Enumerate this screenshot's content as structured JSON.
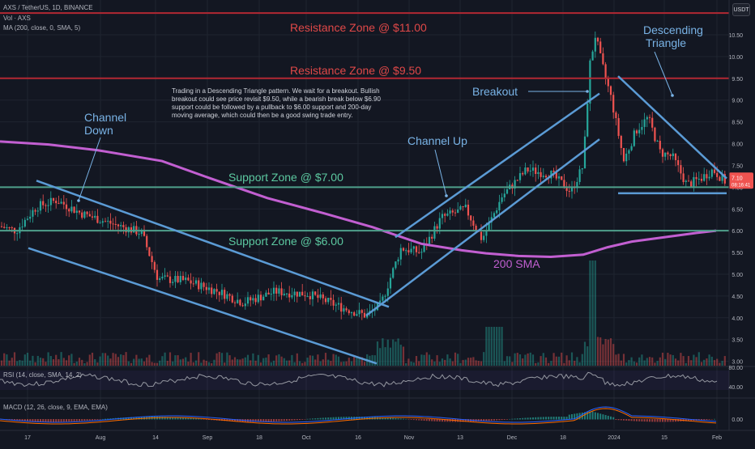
{
  "header": {
    "symbol_line": "AXS / TetherUS, 1D, BINANCE",
    "vol_line": "Vol · AXS",
    "ma_line": "MA (200, close, 0, SMA, 5)",
    "currency_button": "USDT",
    "rsi_label": "RSI (14, close, SMA, 14, 2)",
    "macd_label": "MACD (12, 26, close, 9, EMA, EMA)"
  },
  "price_badge": {
    "price": "7.10",
    "countdown": "08:16:41"
  },
  "annotation_text": "Trading in a Descending Triangle pattern. We wait for a breakout. Bullish breakout could see price revisit $9.50, while a bearish break below $6.90 support could be followed by a pullback to $6.00 support and 200-day moving average, which could then be a good swing trade entry.",
  "labels": {
    "res11": "Resistance Zone @ $11.00",
    "res950": "Resistance Zone @ $9.50",
    "sup7": "Support Zone @ $7.00",
    "sup6": "Support Zone @ $6.00",
    "channel_down": [
      "Channel",
      "Down"
    ],
    "channel_up": "Channel Up",
    "breakout": "Breakout",
    "desc_tri": [
      "Descending",
      "Triangle"
    ],
    "sma": "200 SMA"
  },
  "colors": {
    "bg": "#131722",
    "grid": "#1f2430",
    "up": "#26a69a",
    "down": "#ef5350",
    "resistance": "#b22833",
    "support": "#4fa08c",
    "pattern": "#5b9bd5",
    "sma": "#c25fd1",
    "text_red": "#e04848",
    "text_green": "#5cc8a0",
    "text_blue": "#79b3e6",
    "rsi": "#9598a1",
    "macd": "#2962ff",
    "signal": "#ff6d00"
  },
  "chart_data": {
    "type": "candlestick",
    "title": "AXS / TetherUS, 1D, BINANCE",
    "x_ticks": [
      "17",
      "Aug",
      "14",
      "Sep",
      "18",
      "Oct",
      "16",
      "Nov",
      "13",
      "Dec",
      "18",
      "2024",
      "15",
      "Feb"
    ],
    "y_ticks": [
      "3.00",
      "3.50",
      "4.00",
      "4.50",
      "5.00",
      "5.50",
      "6.00",
      "6.50",
      "7.00",
      "7.50",
      "8.00",
      "8.50",
      "9.00",
      "9.50",
      "10.00",
      "10.50"
    ],
    "ylim": [
      2.9,
      11.15
    ],
    "levels": {
      "resistance": [
        11.0,
        9.5
      ],
      "support": [
        7.0,
        6.0,
        6.8
      ]
    },
    "sma200": [
      [
        0,
        8.05
      ],
      [
        60,
        7.98
      ],
      [
        120,
        7.85
      ],
      [
        200,
        7.6
      ],
      [
        260,
        7.2
      ],
      [
        330,
        6.75
      ],
      [
        400,
        6.4
      ],
      [
        460,
        6.08
      ],
      [
        520,
        5.7
      ],
      [
        570,
        5.55
      ],
      [
        600,
        5.48
      ],
      [
        640,
        5.42
      ],
      [
        680,
        5.4
      ],
      [
        720,
        5.45
      ],
      [
        750,
        5.62
      ],
      [
        780,
        5.75
      ],
      [
        820,
        5.85
      ],
      [
        860,
        5.95
      ],
      [
        884,
        6.0
      ]
    ],
    "pattern_lines": [
      [
        [
          45,
          7.15
        ],
        [
          480,
          4.25
        ]
      ],
      [
        [
          35,
          5.6
        ],
        [
          465,
          2.95
        ]
      ],
      [
        [
          488,
          5.85
        ],
        [
          740,
          9.15
        ]
      ],
      [
        [
          452,
          4.05
        ],
        [
          740,
          8.1
        ]
      ],
      [
        [
          763,
          9.55
        ],
        [
          897,
          7.2
        ]
      ],
      [
        [
          763,
          6.86
        ],
        [
          897,
          6.86
        ]
      ]
    ],
    "rsi": {
      "levels": [
        "80.00",
        "40.00"
      ]
    },
    "macd": {
      "levels": [
        "0.00"
      ]
    },
    "volume_note": "Vol · AXS"
  }
}
